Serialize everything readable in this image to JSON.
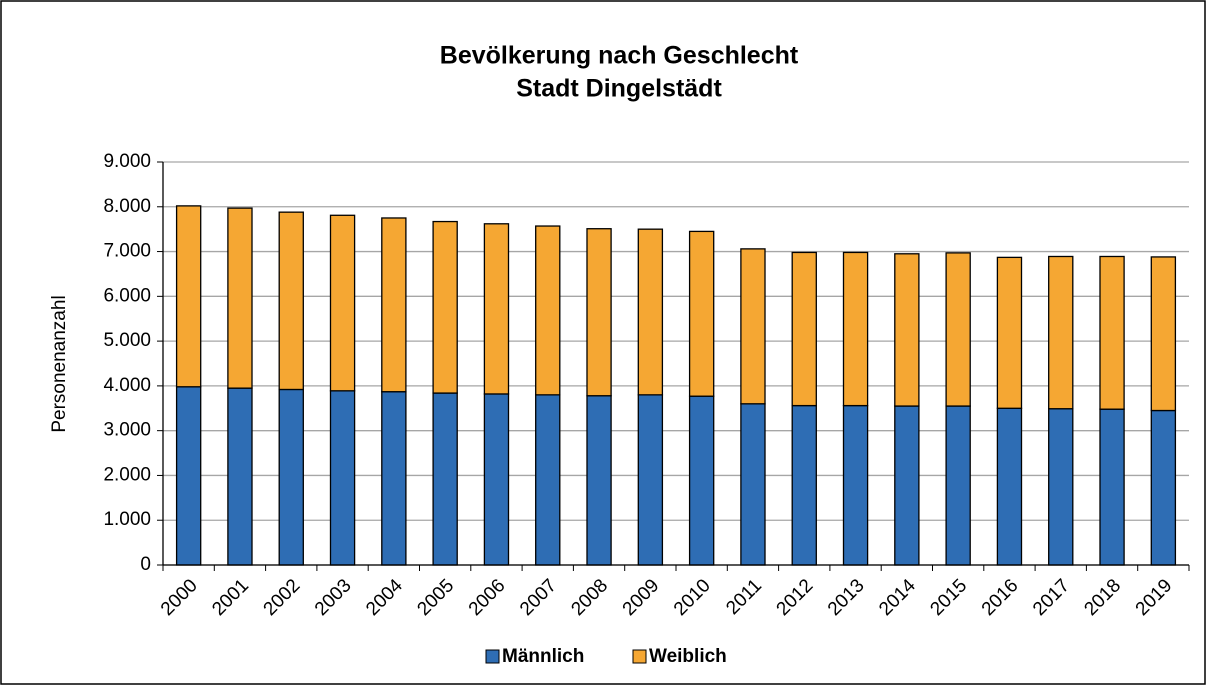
{
  "chart_data": {
    "type": "stacked_bar",
    "title": [
      "Bevölkerung nach Geschlecht",
      "Stadt Dingelstädt"
    ],
    "y_label": "Personenanzahl",
    "categories": [
      "2000",
      "2001",
      "2002",
      "2003",
      "2004",
      "2005",
      "2006",
      "2007",
      "2008",
      "2009",
      "2010",
      "2011",
      "2012",
      "2013",
      "2014",
      "2015",
      "2016",
      "2017",
      "2018",
      "2019"
    ],
    "series": [
      {
        "name": "Männlich",
        "color": "#2e6db4",
        "values": [
          3980,
          3950,
          3920,
          3890,
          3870,
          3840,
          3820,
          3800,
          3780,
          3800,
          3770,
          3600,
          3560,
          3560,
          3550,
          3550,
          3500,
          3490,
          3480,
          3450
        ]
      },
      {
        "name": "Weiblich",
        "color": "#f5a733",
        "values": [
          4040,
          4020,
          3960,
          3920,
          3880,
          3830,
          3800,
          3770,
          3730,
          3700,
          3680,
          3460,
          3420,
          3420,
          3400,
          3420,
          3370,
          3400,
          3410,
          3430
        ]
      }
    ],
    "ylim": [
      0,
      9000
    ],
    "yticks": [
      0,
      {
        "value": 1000,
        "label": "1.000"
      },
      {
        "value": 2000,
        "label": "2.000"
      },
      {
        "value": 3000,
        "label": "3.000"
      },
      {
        "value": 4000,
        "label": "4.000"
      },
      {
        "value": 5000,
        "label": "5.000"
      },
      {
        "value": 6000,
        "label": "6.000"
      },
      {
        "value": 7000,
        "label": "7.000"
      },
      {
        "value": 8000,
        "label": "8.000"
      },
      {
        "value": 9000,
        "label": "9.000"
      }
    ],
    "grid": true,
    "legend": "bottom"
  }
}
